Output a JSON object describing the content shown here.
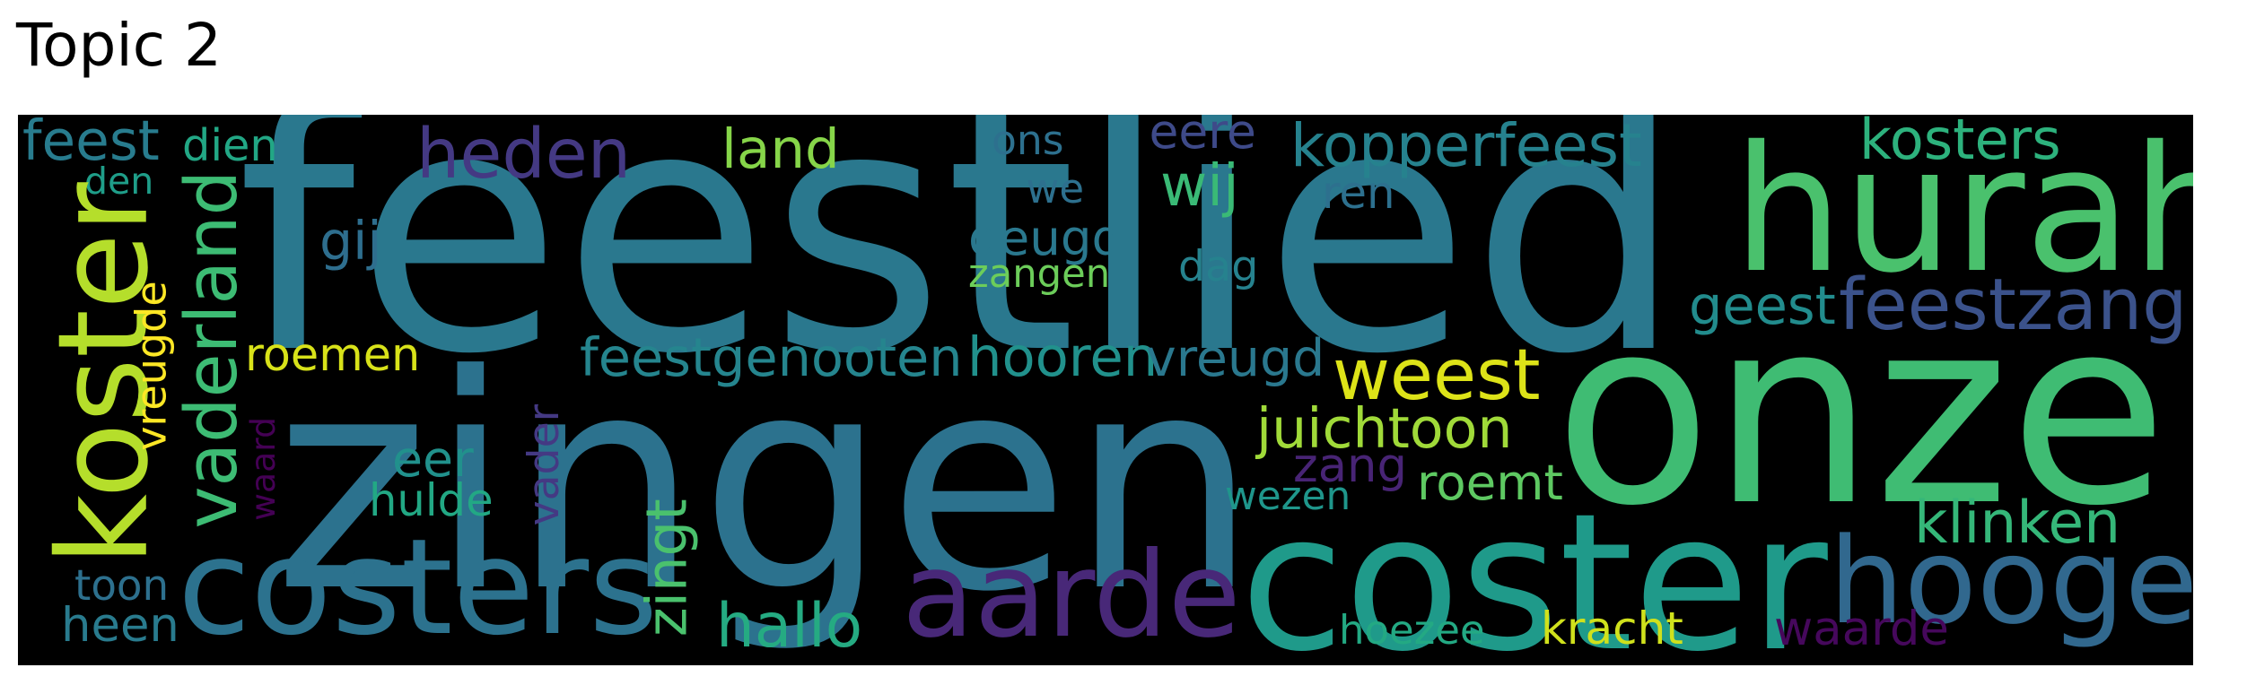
{
  "title": "Topic 2",
  "wordcloud": {
    "background": "#000000",
    "words": [
      {
        "text": "feestlied",
        "color": "#2a788e"
      },
      {
        "text": "zingen",
        "color": "#2c728e"
      },
      {
        "text": "onze",
        "color": "#3fbc73"
      },
      {
        "text": "hurah",
        "color": "#4ac16d"
      },
      {
        "text": "coster",
        "color": "#1f9a8a"
      },
      {
        "text": "koster",
        "color": "#b5de2b"
      },
      {
        "text": "costers",
        "color": "#2c728e"
      },
      {
        "text": "hooger",
        "color": "#31688e"
      },
      {
        "text": "aarde",
        "color": "#482878"
      },
      {
        "text": "vaderland",
        "color": "#3dbc74"
      },
      {
        "text": "heden",
        "color": "#443983"
      },
      {
        "text": "feestzang",
        "color": "#3b528b"
      },
      {
        "text": "weest",
        "color": "#dde318"
      },
      {
        "text": "kopperfeest",
        "color": "#26828e"
      },
      {
        "text": "feestgenooten",
        "color": "#25858e"
      },
      {
        "text": "hooren",
        "color": "#21918c"
      },
      {
        "text": "vreugd",
        "color": "#2a788e"
      },
      {
        "text": "juichtoon",
        "color": "#a0da39"
      },
      {
        "text": "roemen",
        "color": "#d8e219"
      },
      {
        "text": "klinken",
        "color": "#35b779"
      },
      {
        "text": "kosters",
        "color": "#2db27d"
      },
      {
        "text": "land",
        "color": "#86d549"
      },
      {
        "text": "deugd",
        "color": "#2a788e"
      },
      {
        "text": "geest",
        "color": "#228c8d"
      },
      {
        "text": "roemt",
        "color": "#5ec962"
      },
      {
        "text": "zingt",
        "color": "#4ac16d"
      },
      {
        "text": "hallo",
        "color": "#25ab82"
      },
      {
        "text": "kracht",
        "color": "#d0e11c"
      },
      {
        "text": "waarde",
        "color": "#46085c"
      },
      {
        "text": "heen",
        "color": "#297b8e"
      },
      {
        "text": "feest",
        "color": "#287c8e"
      },
      {
        "text": "wij",
        "color": "#3aba76"
      },
      {
        "text": "dag",
        "color": "#26828e"
      },
      {
        "text": "eere",
        "color": "#3e4a89"
      },
      {
        "text": "we",
        "color": "#2d708e"
      },
      {
        "text": "zangen",
        "color": "#6ccd5a"
      },
      {
        "text": "gij",
        "color": "#2e6e8e"
      },
      {
        "text": "eer",
        "color": "#21918c"
      },
      {
        "text": "hulde",
        "color": "#22a884"
      },
      {
        "text": "zang",
        "color": "#482475"
      },
      {
        "text": "wezen",
        "color": "#1f968b"
      },
      {
        "text": "hoezee",
        "color": "#23a983"
      },
      {
        "text": "toon",
        "color": "#2d708e"
      },
      {
        "text": "vreugde",
        "color": "#fde725"
      },
      {
        "text": "vader",
        "color": "#443983"
      },
      {
        "text": "waard",
        "color": "#440154"
      },
      {
        "text": "dien",
        "color": "#22a785"
      },
      {
        "text": "den",
        "color": "#1f9e89"
      },
      {
        "text": "ons",
        "color": "#2d708e"
      },
      {
        "text": "ren",
        "color": "#2d708e"
      }
    ]
  }
}
